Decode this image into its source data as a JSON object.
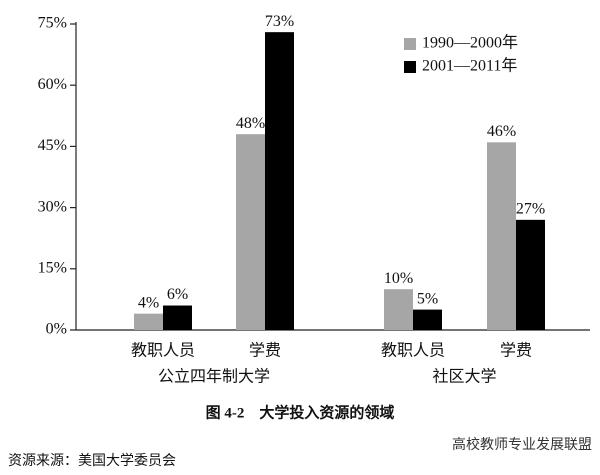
{
  "chart_data": {
    "type": "bar",
    "categories": [
      "教职人员",
      "学费",
      "教职人员",
      "学费"
    ],
    "groups": [
      "公立四年制大学",
      "社区大学"
    ],
    "series": [
      {
        "name": "1990—2000年",
        "color": "#a6a6a6",
        "values": [
          4,
          48,
          10,
          46
        ],
        "value_labels": [
          "4%",
          "48%",
          "10%",
          "46%"
        ]
      },
      {
        "name": "2001—2011年",
        "color": "#000000",
        "values": [
          6,
          73,
          5,
          27
        ],
        "value_labels": [
          "6%",
          "73%",
          "5%",
          "27%"
        ]
      }
    ],
    "ylim": [
      0,
      75
    ],
    "yticks": [
      {
        "value": 0,
        "label": "0%"
      },
      {
        "value": 15,
        "label": "15%"
      },
      {
        "value": 30,
        "label": "30%"
      },
      {
        "value": 45,
        "label": "45%"
      },
      {
        "value": 60,
        "label": "60%"
      },
      {
        "value": 75,
        "label": "75%"
      }
    ],
    "legend": "upper right",
    "caption": "图 4-2　大学投入资源的领域",
    "source": "资源来源：美国大学委员会",
    "watermark": "高校教师专业发展联盟"
  }
}
